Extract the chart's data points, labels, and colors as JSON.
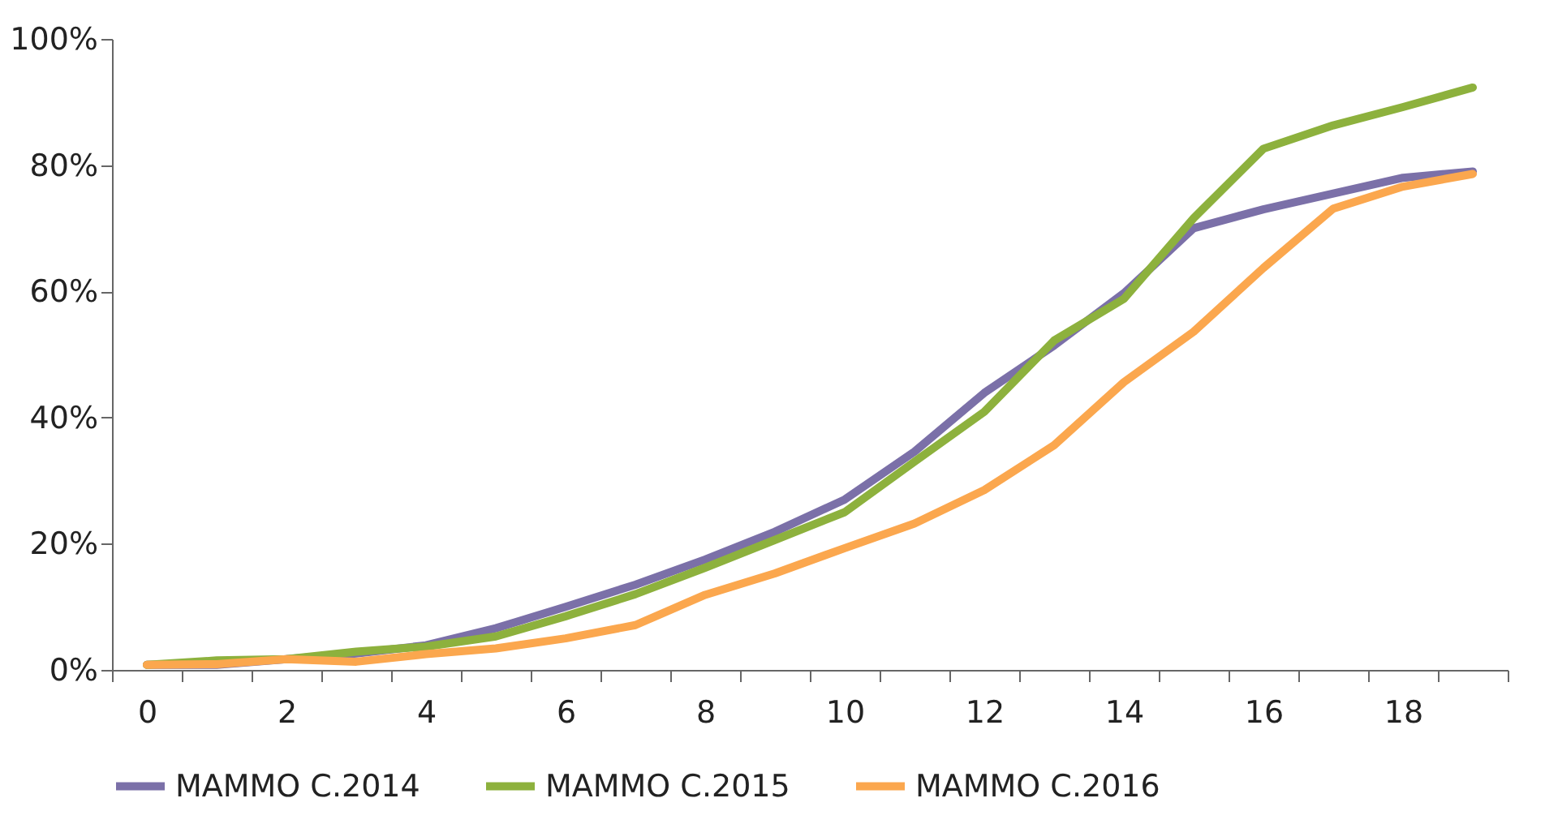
{
  "chart_data": {
    "type": "line",
    "categories": [
      "0",
      null,
      "2",
      null,
      "4",
      null,
      "6",
      null,
      "8",
      null,
      "10",
      null,
      "12",
      null,
      "14",
      null,
      "16",
      null,
      "18",
      null
    ],
    "series": [
      {
        "name": "MAMMO C.2014",
        "color": "#7b70a8",
        "values": [
          0.8,
          0.8,
          1.7,
          2.6,
          3.9,
          6.6,
          10,
          13.5,
          17.5,
          21.9,
          27,
          34.6,
          43.9,
          51.4,
          59.7,
          70,
          73,
          75.5,
          78,
          79
        ]
      },
      {
        "name": "MAMMO C.2015",
        "color": "#8db13d",
        "values": [
          0.8,
          1.5,
          1.7,
          2.9,
          3.7,
          5.3,
          8.5,
          12,
          16.2,
          20.6,
          25,
          33,
          40.9,
          52.2,
          58.8,
          71.6,
          82.6,
          86.3,
          89.2,
          92.3
        ]
      },
      {
        "name": "MAMMO C.2016",
        "color": "#fba74e",
        "values": [
          0.8,
          0.9,
          1.7,
          1.3,
          2.5,
          3.4,
          5,
          7.1,
          11.9,
          15.3,
          19.3,
          23.2,
          28.5,
          35.6,
          45.6,
          53.6,
          63.7,
          73.1,
          76.6,
          78.6
        ]
      }
    ],
    "ylim": [
      0,
      100
    ],
    "yticks": [
      {
        "value": 0,
        "label": "0%"
      },
      {
        "value": 20,
        "label": "20%"
      },
      {
        "value": 40,
        "label": "40%"
      },
      {
        "value": 60,
        "label": "60%"
      },
      {
        "value": 80,
        "label": "80%"
      },
      {
        "value": 100,
        "label": "100%"
      }
    ],
    "grid": false,
    "legend": "bottom",
    "marker": "none",
    "line_style": "solid"
  }
}
